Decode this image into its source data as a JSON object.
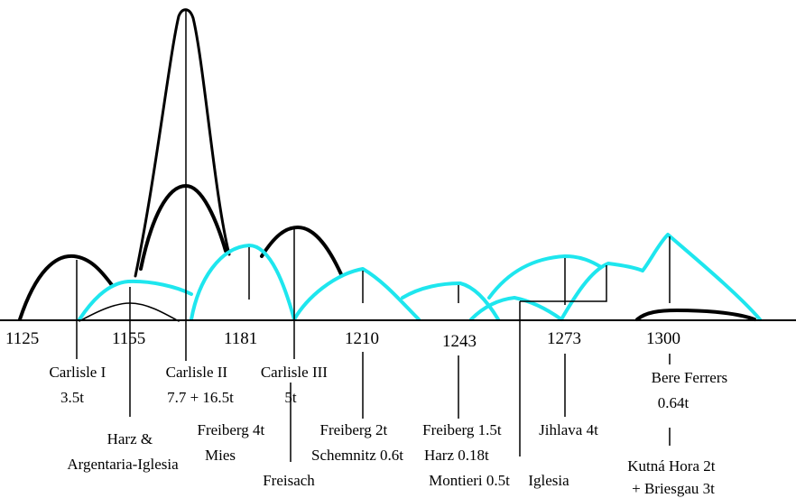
{
  "years": [
    "1125",
    "1155",
    "1181",
    "1210",
    "1243",
    "1273",
    "1300"
  ],
  "mines": [
    {
      "lines": [
        "Carlisle I",
        "3.5t"
      ]
    },
    {
      "lines": [
        "Harz &",
        "Argentaria-Iglesia"
      ]
    },
    {
      "lines": [
        "Carlisle II",
        "7.7 + 16.5t"
      ]
    },
    {
      "lines": [
        "Freiberg 4t",
        "Mies"
      ]
    },
    {
      "lines": [
        "Carlisle III",
        "5t"
      ]
    },
    {
      "lines": [
        "Freisach"
      ]
    },
    {
      "lines": [
        "Freiberg 2t",
        "Schemnitz 0.6t"
      ]
    },
    {
      "lines": [
        "Freiberg 1.5t",
        "Harz 0.18t",
        "Montieri 0.5t"
      ]
    },
    {
      "lines": [
        "Iglesia"
      ]
    },
    {
      "lines": [
        "Jihlava 4t"
      ]
    },
    {
      "lines": [
        "Bere Ferrers",
        "0.64t"
      ]
    },
    {
      "lines": [
        "Kutná Hora 2t",
        "+ Briesgau 3t"
      ]
    }
  ],
  "colors": {
    "black_curve": "#000000",
    "cyan_curve": "#1ee6ee",
    "axis": "#000000"
  }
}
